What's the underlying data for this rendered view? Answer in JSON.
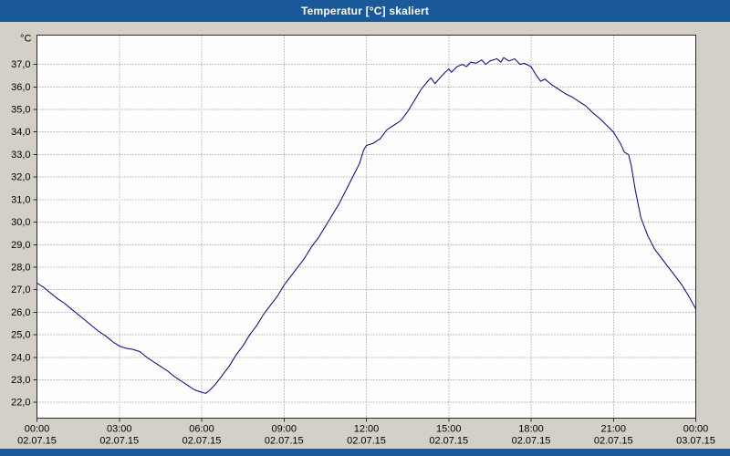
{
  "window": {
    "title": "Temperatur [°C] skaliert"
  },
  "colors": {
    "titlebar_bg": "#1A5A9B",
    "titlebar_text": "#FFFFFF",
    "page_bg": "#D4D0C8",
    "plot_bg": "#FEFEFE",
    "grid": "#8A8A8A",
    "axis_border": "#2B2B2B",
    "tick_text": "#000000",
    "line": "#000080",
    "footer_bg": "#1A5A9B"
  },
  "chart_data": {
    "type": "line",
    "title": "Temperatur [°C] skaliert",
    "ylabel": "°C",
    "xlabel": "",
    "ylim": [
      21.3,
      38.3
    ],
    "xlim_hours": [
      0,
      24
    ],
    "grid": true,
    "legend_position": "none",
    "yticks": [
      {
        "value": 37,
        "label": "37,0"
      },
      {
        "value": 36,
        "label": "36,0"
      },
      {
        "value": 35,
        "label": "35,0"
      },
      {
        "value": 34,
        "label": "34,0"
      },
      {
        "value": 33,
        "label": "33,0"
      },
      {
        "value": 32,
        "label": "32,0"
      },
      {
        "value": 31,
        "label": "31,0"
      },
      {
        "value": 30,
        "label": "30,0"
      },
      {
        "value": 29,
        "label": "29,0"
      },
      {
        "value": 28,
        "label": "28,0"
      },
      {
        "value": 27,
        "label": "27,0"
      },
      {
        "value": 26,
        "label": "26,0"
      },
      {
        "value": 25,
        "label": "25,0"
      },
      {
        "value": 24,
        "label": "24,0"
      },
      {
        "value": 23,
        "label": "23,0"
      },
      {
        "value": 22,
        "label": "22,0"
      }
    ],
    "xticks": [
      {
        "hour": 0,
        "time": "00:00",
        "date": "02.07.15"
      },
      {
        "hour": 3,
        "time": "03:00",
        "date": "02.07.15"
      },
      {
        "hour": 6,
        "time": "06:00",
        "date": "02.07.15"
      },
      {
        "hour": 9,
        "time": "09:00",
        "date": "02.07.15"
      },
      {
        "hour": 12,
        "time": "12:00",
        "date": "02.07.15"
      },
      {
        "hour": 15,
        "time": "15:00",
        "date": "02.07.15"
      },
      {
        "hour": 18,
        "time": "18:00",
        "date": "02.07.15"
      },
      {
        "hour": 21,
        "time": "21:00",
        "date": "02.07.15"
      },
      {
        "hour": 24,
        "time": "00:00",
        "date": "03.07.15"
      }
    ],
    "series": [
      {
        "name": "Temperatur [°C]",
        "color": "#000080",
        "points": [
          [
            0,
            27.3
          ],
          [
            0.25,
            27.1
          ],
          [
            0.5,
            26.85
          ],
          [
            0.75,
            26.6
          ],
          [
            1,
            26.4
          ],
          [
            1.25,
            26.15
          ],
          [
            1.5,
            25.9
          ],
          [
            1.75,
            25.65
          ],
          [
            2,
            25.4
          ],
          [
            2.25,
            25.15
          ],
          [
            2.5,
            24.95
          ],
          [
            2.75,
            24.7
          ],
          [
            3,
            24.5
          ],
          [
            3.25,
            24.4
          ],
          [
            3.5,
            24.35
          ],
          [
            3.75,
            24.25
          ],
          [
            4,
            24
          ],
          [
            4.25,
            23.8
          ],
          [
            4.5,
            23.6
          ],
          [
            4.75,
            23.4
          ],
          [
            5,
            23.15
          ],
          [
            5.25,
            22.95
          ],
          [
            5.5,
            22.75
          ],
          [
            5.75,
            22.55
          ],
          [
            6,
            22.45
          ],
          [
            6.15,
            22.4
          ],
          [
            6.3,
            22.55
          ],
          [
            6.5,
            22.8
          ],
          [
            6.75,
            23.2
          ],
          [
            7,
            23.6
          ],
          [
            7.25,
            24.1
          ],
          [
            7.5,
            24.5
          ],
          [
            7.75,
            25
          ],
          [
            8,
            25.4
          ],
          [
            8.25,
            25.9
          ],
          [
            8.5,
            26.3
          ],
          [
            8.75,
            26.7
          ],
          [
            9,
            27.2
          ],
          [
            9.25,
            27.6
          ],
          [
            9.5,
            28
          ],
          [
            9.75,
            28.4
          ],
          [
            10,
            28.9
          ],
          [
            10.25,
            29.3
          ],
          [
            10.5,
            29.8
          ],
          [
            10.75,
            30.3
          ],
          [
            11,
            30.8
          ],
          [
            11.25,
            31.4
          ],
          [
            11.5,
            32
          ],
          [
            11.75,
            32.6
          ],
          [
            11.9,
            33.2
          ],
          [
            12,
            33.4
          ],
          [
            12.25,
            33.5
          ],
          [
            12.5,
            33.7
          ],
          [
            12.75,
            34.1
          ],
          [
            13,
            34.3
          ],
          [
            13.25,
            34.5
          ],
          [
            13.5,
            34.9
          ],
          [
            13.75,
            35.4
          ],
          [
            14,
            35.9
          ],
          [
            14.2,
            36.2
          ],
          [
            14.35,
            36.4
          ],
          [
            14.5,
            36.15
          ],
          [
            14.75,
            36.5
          ],
          [
            15,
            36.8
          ],
          [
            15.1,
            36.65
          ],
          [
            15.3,
            36.9
          ],
          [
            15.5,
            37
          ],
          [
            15.65,
            36.9
          ],
          [
            15.8,
            37.1
          ],
          [
            16,
            37.05
          ],
          [
            16.2,
            37.2
          ],
          [
            16.35,
            37
          ],
          [
            16.5,
            37.15
          ],
          [
            16.75,
            37.25
          ],
          [
            16.9,
            37.1
          ],
          [
            17,
            37.3
          ],
          [
            17.2,
            37.15
          ],
          [
            17.4,
            37.25
          ],
          [
            17.6,
            37
          ],
          [
            17.75,
            37.05
          ],
          [
            18,
            36.9
          ],
          [
            18.2,
            36.5
          ],
          [
            18.35,
            36.25
          ],
          [
            18.5,
            36.35
          ],
          [
            18.75,
            36.1
          ],
          [
            19,
            35.9
          ],
          [
            19.25,
            35.7
          ],
          [
            19.5,
            35.55
          ],
          [
            19.75,
            35.35
          ],
          [
            20,
            35.15
          ],
          [
            20.25,
            34.85
          ],
          [
            20.5,
            34.6
          ],
          [
            20.75,
            34.3
          ],
          [
            21,
            34
          ],
          [
            21.25,
            33.5
          ],
          [
            21.4,
            33.1
          ],
          [
            21.55,
            33
          ],
          [
            21.65,
            32.5
          ],
          [
            21.8,
            31.4
          ],
          [
            22,
            30.2
          ],
          [
            22.25,
            29.4
          ],
          [
            22.5,
            28.8
          ],
          [
            22.75,
            28.4
          ],
          [
            23,
            28
          ],
          [
            23.25,
            27.6
          ],
          [
            23.5,
            27.2
          ],
          [
            23.75,
            26.7
          ],
          [
            24,
            26.15
          ]
        ]
      }
    ]
  }
}
